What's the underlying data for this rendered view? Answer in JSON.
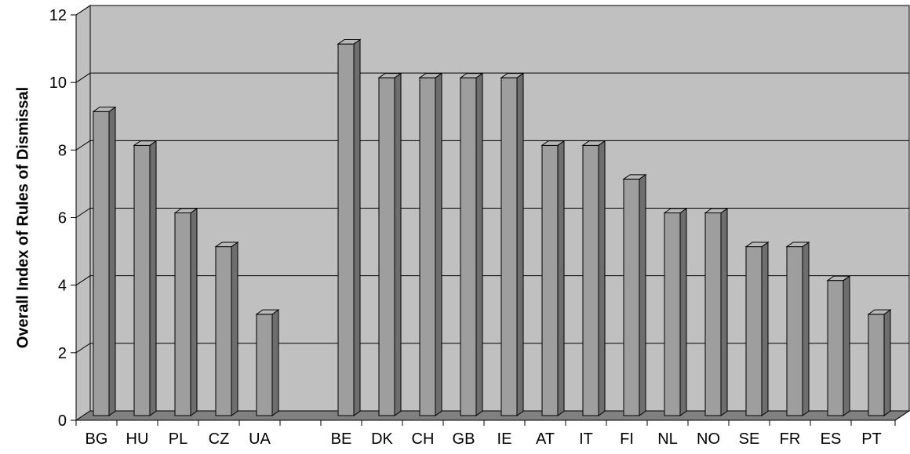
{
  "chart_data": {
    "type": "bar",
    "title": "",
    "xlabel": "",
    "ylabel": "Overall Index of Rules of Dismissal",
    "ylim": [
      0,
      12
    ],
    "yticks": [
      0,
      2,
      4,
      6,
      8,
      10,
      12
    ],
    "grid": true,
    "three_d": true,
    "categories": [
      "BG",
      "HU",
      "PL",
      "CZ",
      "UA",
      "",
      "BE",
      "DK",
      "CH",
      "GB",
      "IE",
      "AT",
      "IT",
      "FI",
      "NL",
      "NO",
      "SE",
      "FR",
      "ES",
      "PT"
    ],
    "values": [
      9,
      8,
      6,
      5,
      3,
      null,
      11,
      10,
      10,
      10,
      10,
      8,
      8,
      7,
      6,
      6,
      5,
      5,
      4,
      3
    ],
    "colors": {
      "wall": "#c0c0c0",
      "floor": "#808080",
      "bar_front": "#9e9e9e",
      "bar_side": "#6e6e6e",
      "bar_top": "#b8b8b8"
    }
  }
}
